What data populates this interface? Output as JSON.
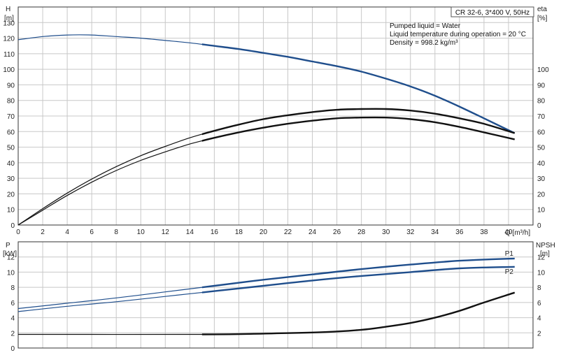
{
  "chart_data": [
    {
      "type": "line",
      "title": "CR 32-6, 3*400 V, 50Hz",
      "annotations": [
        "Pumped liquid = Water",
        "Liquid temperature during operation = 20 °C",
        "Density = 998.2 kg/m³"
      ],
      "xlabel": "Q [m³/h]",
      "ylabel": [
        "H",
        "[m]"
      ],
      "y2label": [
        "eta",
        "[%]"
      ],
      "xlim": [
        0,
        42
      ],
      "ylim": [
        0,
        140
      ],
      "y2lim": [
        0,
        140
      ],
      "x_ticks": [
        0,
        2,
        4,
        6,
        8,
        10,
        12,
        14,
        16,
        18,
        20,
        22,
        24,
        26,
        28,
        30,
        32,
        34,
        36,
        38,
        40
      ],
      "y_ticks": [
        0,
        10,
        20,
        30,
        40,
        50,
        60,
        70,
        80,
        90,
        100,
        110,
        120,
        130
      ],
      "y2_ticks": [
        0,
        10,
        20,
        30,
        40,
        50,
        60,
        70,
        80,
        90,
        100
      ],
      "grid": true,
      "series": [
        {
          "axis": "left",
          "color": "#1f4e8c",
          "x": [
            0,
            2,
            4,
            6,
            8,
            10,
            12,
            14,
            16,
            18,
            20,
            22,
            24,
            26,
            28,
            30,
            32,
            34,
            36,
            38,
            40.5
          ],
          "values": [
            119,
            121,
            122,
            122,
            121,
            120,
            118.5,
            117,
            115,
            113,
            110.5,
            108,
            105,
            102,
            98.5,
            94,
            89,
            83,
            76,
            68.5,
            59
          ]
        },
        {
          "axis": "right",
          "color": "#111111",
          "x": [
            0,
            2,
            4,
            6,
            8,
            10,
            12,
            14,
            16,
            18,
            20,
            22,
            24,
            26,
            28,
            30,
            32,
            34,
            36,
            38,
            40.5
          ],
          "values": [
            0,
            10.5,
            20.5,
            29.5,
            37.5,
            44.5,
            50.5,
            56,
            60.5,
            64.5,
            68,
            70.5,
            72.5,
            74,
            74.5,
            74.5,
            73.5,
            71.5,
            68.5,
            65,
            59
          ]
        },
        {
          "axis": "right",
          "color": "#111111",
          "x": [
            0,
            2,
            4,
            6,
            8,
            10,
            12,
            14,
            16,
            18,
            20,
            22,
            24,
            26,
            28,
            30,
            32,
            34,
            36,
            38,
            40.5
          ],
          "values": [
            0,
            9.5,
            19,
            27.5,
            35,
            41.5,
            47,
            52,
            56,
            59.5,
            62.5,
            65,
            67,
            68.5,
            69,
            69,
            68,
            66,
            63,
            59.5,
            55
          ]
        }
      ]
    },
    {
      "type": "line",
      "ylabel": [
        "P",
        "[kW]"
      ],
      "y2label": [
        "NPSH",
        "[m]"
      ],
      "xlim": [
        0,
        42
      ],
      "ylim": [
        0,
        14
      ],
      "y2lim": [
        0,
        14
      ],
      "y_ticks": [
        0,
        2,
        4,
        6,
        8,
        10,
        12
      ],
      "y2_ticks": [
        2,
        4,
        6,
        8,
        10,
        12
      ],
      "grid": true,
      "series": [
        {
          "name": "P1",
          "axis": "left",
          "color": "#1f4e8c",
          "x": [
            0,
            4,
            8,
            12,
            16,
            20,
            24,
            28,
            32,
            36,
            40.5
          ],
          "values": [
            5.2,
            5.9,
            6.6,
            7.4,
            8.2,
            9.0,
            9.7,
            10.4,
            11.0,
            11.5,
            11.8
          ]
        },
        {
          "name": "P2",
          "axis": "left",
          "color": "#1f4e8c",
          "x": [
            0,
            4,
            8,
            12,
            16,
            20,
            24,
            28,
            32,
            36,
            40.5
          ],
          "values": [
            4.8,
            5.5,
            6.1,
            6.8,
            7.5,
            8.2,
            8.9,
            9.5,
            10.0,
            10.5,
            10.7
          ]
        },
        {
          "axis": "right",
          "color": "#111111",
          "x": [
            0,
            15,
            20,
            25,
            28,
            30,
            32,
            34,
            36,
            38,
            40.5
          ],
          "values": [
            1.8,
            1.8,
            1.9,
            2.1,
            2.4,
            2.8,
            3.3,
            4.0,
            4.9,
            6.0,
            7.3
          ]
        }
      ]
    }
  ]
}
